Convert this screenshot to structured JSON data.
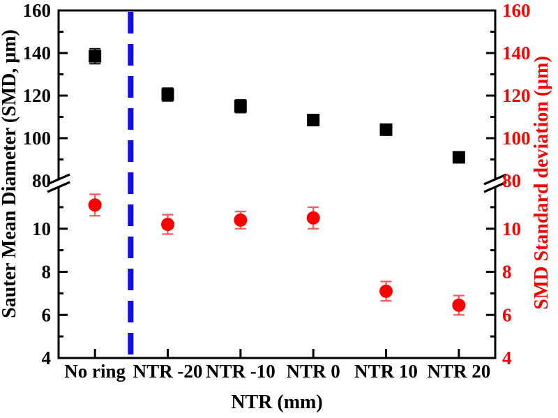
{
  "chart_data": {
    "type": "scatter",
    "title": "",
    "xlabel": "NTR (mm)",
    "ylabel_left": "Sauter Mean Diameter (SMD, μm)",
    "ylabel_right": "SMD Standard deviation (μm)",
    "categories": [
      "No ring",
      "NTR -20",
      "NTR -10",
      "NTR 0",
      "NTR 10",
      "NTR 20"
    ],
    "axis_break": {
      "upper_range": [
        80,
        160
      ],
      "lower_range": [
        4,
        12
      ],
      "note": "y axes broken between 12 and 80 on both sides"
    },
    "y_ticks_upper": [
      160,
      140,
      120,
      100,
      80
    ],
    "y_minor_ticks_upper": [
      150,
      130,
      110,
      90
    ],
    "y_ticks_lower": [
      10,
      8,
      6,
      4
    ],
    "y_minor_ticks_lower": [
      11,
      9,
      7,
      5
    ],
    "grid": "off",
    "legend": "none",
    "series": [
      {
        "name": "Sauter Mean Diameter (SMD)",
        "axis_segment": "upper",
        "marker": "square",
        "color": "#000000",
        "error_color": "#1c1c1c",
        "values": [
          138.5,
          120.5,
          115,
          108.5,
          104,
          91
        ],
        "errors": [
          3.5,
          3,
          3,
          2.5,
          2.5,
          2
        ]
      },
      {
        "name": "SMD Standard deviation",
        "axis_segment": "lower",
        "marker": "circle",
        "color": "#fb0000",
        "error_color": "#ff5a5a",
        "values": [
          11.1,
          10.2,
          10.4,
          10.5,
          7.1,
          6.45
        ],
        "errors": [
          0.5,
          0.45,
          0.4,
          0.5,
          0.45,
          0.45
        ]
      }
    ],
    "separator_line": {
      "color": "#0d0df0",
      "style": "dashed",
      "after_category": "No ring"
    },
    "colors": {
      "left_axis": "#000000",
      "right_axis": "#fb0000"
    }
  }
}
